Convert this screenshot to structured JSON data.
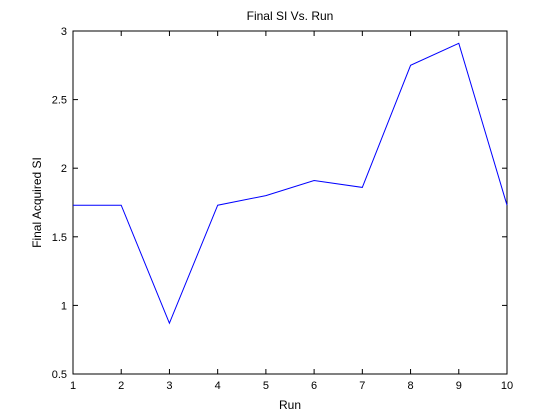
{
  "chart_data": {
    "type": "line",
    "title": "Final SI Vs. Run",
    "xlabel": "Run",
    "ylabel": "Final Acquired SI",
    "xlim": [
      1,
      10
    ],
    "ylim": [
      0.5,
      3
    ],
    "x_ticks": [
      1,
      2,
      3,
      4,
      5,
      6,
      7,
      8,
      9,
      10
    ],
    "y_ticks": [
      0.5,
      1,
      1.5,
      2,
      2.5,
      3
    ],
    "x_tick_labels": [
      "1",
      "2",
      "3",
      "4",
      "5",
      "6",
      "7",
      "8",
      "9",
      "10"
    ],
    "y_tick_labels": [
      "0.5",
      "1",
      "1.5",
      "2",
      "2.5",
      "3"
    ],
    "grid": false,
    "legend": "none",
    "series": [
      {
        "color": "#0000ff",
        "x": [
          1,
          2,
          3,
          4,
          5,
          6,
          7,
          8,
          9,
          10
        ],
        "y": [
          1.73,
          1.73,
          0.87,
          1.73,
          1.8,
          1.91,
          1.86,
          2.75,
          2.91,
          1.73
        ]
      }
    ]
  }
}
